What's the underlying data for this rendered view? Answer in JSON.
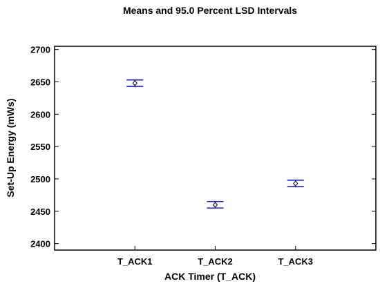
{
  "chart_data": {
    "type": "scatter",
    "title": "Means and 95.0 Percent LSD Intervals",
    "xlabel": "ACK Timer (T_ACK)",
    "ylabel": "Set-Up Energy (mWs)",
    "categories": [
      "T_ACK1",
      "T_ACK2",
      "T_ACK3"
    ],
    "means": [
      2648,
      2460,
      2493
    ],
    "lower": [
      2643,
      2455,
      2488
    ],
    "upper": [
      2653,
      2465,
      2498
    ],
    "ylim": [
      2390,
      2705
    ],
    "yticks": [
      "2400",
      "2450",
      "2500",
      "2550",
      "2600",
      "2650",
      "2700"
    ],
    "grid": false,
    "colors": {
      "interval": "#1a1aff",
      "marker": "#000000"
    }
  }
}
